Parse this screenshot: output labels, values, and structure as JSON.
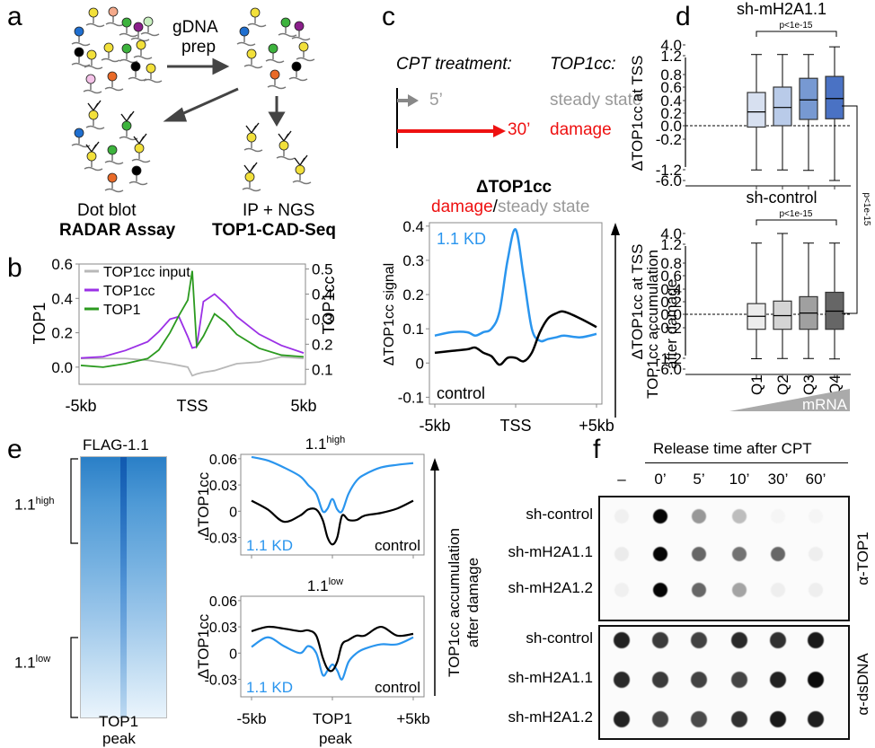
{
  "panels": {
    "a": {
      "label": "a",
      "arrow_label_line1": "gDNA",
      "arrow_label_line2": "prep",
      "left_caption_line1": "Dot blot",
      "left_caption_line2": "RADAR Assay",
      "right_caption_line1": "IP + NGS",
      "right_caption_line2": "TOP1-CAD-Seq"
    },
    "b": {
      "label": "b"
    },
    "c": {
      "label": "c",
      "cpt_treatment": "CPT treatment:",
      "top1cc_header": "TOP1cc:",
      "short_time": "5’",
      "long_time": "30’",
      "short_state": "steady state",
      "long_state": "damage",
      "title": "ΔTOP1cc",
      "subtitle_damage": "damage",
      "subtitle_sep": "/",
      "subtitle_steady": "steady state",
      "side_arrow_line1": "TOP1cc accumulation",
      "side_arrow_line2": "after damage"
    },
    "d": {
      "label": "d",
      "between_pvalue": "p<1e-15",
      "mrna_label": "mRNA"
    },
    "e": {
      "label": "e",
      "heatmap_title": "FLAG-1.1",
      "high_label_base": "1.1",
      "high_label_sup": "high",
      "low_label_base": "1.1",
      "low_label_sup": "low",
      "heatmap_xlabel_line1": "TOP1",
      "heatmap_xlabel_line2": "peak",
      "side_arrow_line1": "TOP1cc accumulation",
      "side_arrow_line2": "after damage",
      "xlabel_line2": "peak"
    },
    "f": {
      "label": "f",
      "release_header": "Release time after CPT",
      "columns": [
        "–",
        "0’",
        "5’",
        "10’",
        "30’",
        "60’"
      ],
      "rows": [
        "sh-control",
        "sh-mH2A1.1",
        "sh-mH2A1.2"
      ],
      "blot_top_label": "α-TOP1",
      "blot_bottom_label": "α-dsDNA",
      "top1_intensity": [
        [
          0.04,
          1.0,
          0.4,
          0.25,
          0.02,
          0.02
        ],
        [
          0.06,
          1.0,
          0.6,
          0.55,
          0.6,
          0.05
        ],
        [
          0.04,
          1.0,
          0.6,
          0.35,
          0.05,
          0.05
        ]
      ],
      "dsdna_intensity": [
        [
          0.88,
          0.78,
          0.75,
          0.85,
          0.82,
          0.92
        ],
        [
          0.85,
          0.78,
          0.75,
          0.74,
          0.88,
          0.97
        ],
        [
          0.88,
          0.74,
          0.72,
          0.82,
          0.92,
          0.9
        ]
      ]
    }
  },
  "chart_data": [
    {
      "id": "b",
      "type": "line",
      "title": "",
      "xlabel": "",
      "ylabel": "TOP1",
      "y2label": "TOP1cc",
      "xticks": [
        "-5kb",
        "TSS",
        "5kb"
      ],
      "xlim": [
        -5,
        5
      ],
      "ylim": [
        -0.1,
        0.6
      ],
      "yticks": [
        "0.0",
        "0.2",
        "0.4",
        "0.6"
      ],
      "y2lim": [
        0.04,
        0.52
      ],
      "y2ticks": [
        "0.1",
        "0.2",
        "0.3",
        "0.4",
        "0.5"
      ],
      "legend": "top-left",
      "x": [
        -5,
        -4,
        -3,
        -2,
        -1.5,
        -1,
        -0.6,
        -0.2,
        0,
        0.2,
        0.5,
        1,
        1.5,
        2,
        3,
        4,
        5
      ],
      "series": [
        {
          "name": "TOP1cc input",
          "color": "#b8b8b8",
          "axis": "left",
          "values": [
            0.05,
            0.05,
            0.05,
            0.04,
            0.03,
            0.02,
            0.01,
            0.0,
            -0.05,
            -0.04,
            -0.03,
            -0.02,
            0.0,
            0.02,
            0.03,
            0.06,
            0.05
          ]
        },
        {
          "name": "TOP1cc",
          "color": "#9b30e6",
          "axis": "right",
          "values": [
            0.145,
            0.15,
            0.175,
            0.21,
            0.25,
            0.3,
            0.31,
            0.23,
            0.185,
            0.19,
            0.37,
            0.4,
            0.36,
            0.31,
            0.24,
            0.195,
            0.165
          ]
        },
        {
          "name": "TOP1",
          "color": "#2b9a1f",
          "axis": "left",
          "values": [
            0.01,
            0.0,
            0.02,
            0.05,
            0.1,
            0.2,
            0.3,
            0.39,
            0.56,
            0.12,
            0.18,
            0.31,
            0.26,
            0.19,
            0.11,
            0.07,
            0.06
          ]
        }
      ]
    },
    {
      "id": "c",
      "type": "line",
      "title": "ΔTOP1cc",
      "xlabel": "",
      "ylabel": "ΔTOP1cc signal",
      "xticks": [
        "-5kb",
        "TSS",
        "+5kb"
      ],
      "xlim": [
        -5,
        5
      ],
      "ylim": [
        -0.12,
        0.41
      ],
      "yticks": [
        "-0.1",
        "0",
        "0.1",
        "0.2",
        "0.3",
        "0.4"
      ],
      "x": [
        -5,
        -4,
        -3,
        -2.5,
        -2,
        -1.5,
        -1,
        -0.5,
        0,
        0.5,
        1,
        1.5,
        2,
        2.5,
        3,
        4,
        5
      ],
      "series": [
        {
          "name": "1.1 KD",
          "color": "#2a95ee",
          "values": [
            0.08,
            0.09,
            0.09,
            0.08,
            0.09,
            0.1,
            0.15,
            0.3,
            0.39,
            0.25,
            0.1,
            0.065,
            0.07,
            0.075,
            0.08,
            0.075,
            0.085
          ]
        },
        {
          "name": "control",
          "color": "#000000",
          "values": [
            0.03,
            0.035,
            0.04,
            0.045,
            0.03,
            0.02,
            -0.005,
            0.015,
            0.015,
            0.005,
            0.03,
            0.09,
            0.13,
            0.145,
            0.15,
            0.13,
            0.105
          ]
        }
      ]
    },
    {
      "id": "d-top",
      "type": "box",
      "title": "sh-mH2A1.1",
      "ylabel": "ΔTOP1cc at TSS",
      "yticks": [
        "4.0",
        "1.2",
        "0.8",
        "0.6",
        "0.4",
        "0.2",
        "0.0",
        "-0.2",
        "-1.2",
        "-6.0"
      ],
      "categories": [
        "Q1",
        "Q2",
        "Q3",
        "Q4"
      ],
      "pvalue": "p<1e-15",
      "colors": [
        "#d7e0f0",
        "#b9cbe9",
        "#7799d2",
        "#4a72c4"
      ],
      "boxes": [
        {
          "median": 0.22,
          "q1": -0.02,
          "q3": 0.52,
          "whisker_low": -1.3,
          "whisker_high": 1.5
        },
        {
          "median": 0.29,
          "q1": 0.0,
          "q3": 0.6,
          "whisker_low": -1.3,
          "whisker_high": 1.5
        },
        {
          "median": 0.41,
          "q1": 0.1,
          "q3": 0.74,
          "whisker_low": -1.5,
          "whisker_high": 1.5
        },
        {
          "median": 0.43,
          "q1": 0.11,
          "q3": 0.77,
          "whisker_low": -6.0,
          "whisker_high": 3.5
        }
      ]
    },
    {
      "id": "d-bottom",
      "type": "box",
      "title": "sh-control",
      "ylabel": "ΔTOP1cc at TSS",
      "yticks": [
        "4.0",
        "1.2",
        "0.8",
        "0.6",
        "0.4",
        "0.2",
        "0.0",
        "-0.2",
        "-1.2",
        "-6.0"
      ],
      "categories": [
        "Q1",
        "Q2",
        "Q3",
        "Q4"
      ],
      "xlabel": "mRNA",
      "pvalue": "p<1e-15",
      "colors": [
        "#ececec",
        "#d4d4d4",
        "#a0a0a0",
        "#666666"
      ],
      "boxes": [
        {
          "median": -0.03,
          "q1": -0.25,
          "q3": 0.17,
          "whisker_low": -1.4,
          "whisker_high": 1.5
        },
        {
          "median": -0.02,
          "q1": -0.25,
          "q3": 0.21,
          "whisker_low": -1.3,
          "whisker_high": 4.0
        },
        {
          "median": 0.02,
          "q1": -0.25,
          "q3": 0.28,
          "whisker_low": -1.3,
          "whisker_high": 1.5
        },
        {
          "median": 0.05,
          "q1": -0.25,
          "q3": 0.35,
          "whisker_low": -1.5,
          "whisker_high": 1.5
        }
      ]
    },
    {
      "id": "e-high",
      "type": "line",
      "title": "1.1 high",
      "ylabel": "ΔTOP1cc",
      "xticks": [
        "-5kb",
        "TOP1",
        "+5kb"
      ],
      "xlim": [
        -5,
        5
      ],
      "ylim": [
        -0.05,
        0.065
      ],
      "yticks": [
        "-0.03",
        "0",
        "0.03",
        "0.06"
      ],
      "x": [
        -5,
        -4,
        -3,
        -2,
        -1.5,
        -1,
        -0.6,
        -0.3,
        0,
        0.3,
        0.6,
        1,
        1.5,
        2,
        3,
        4,
        5
      ],
      "series": [
        {
          "name": "1.1 KD",
          "color": "#2a95ee",
          "values": [
            0.062,
            0.058,
            0.05,
            0.04,
            0.03,
            0.02,
            0.0,
            0.003,
            0.014,
            0.002,
            0.0,
            0.02,
            0.035,
            0.042,
            0.05,
            0.053,
            0.055
          ]
        },
        {
          "name": "control",
          "color": "#000000",
          "values": [
            0.012,
            0.002,
            -0.012,
            -0.005,
            0.002,
            0.002,
            -0.01,
            -0.03,
            -0.038,
            -0.03,
            -0.005,
            -0.01,
            -0.01,
            -0.005,
            -0.002,
            0.003,
            0.012
          ]
        }
      ]
    },
    {
      "id": "e-low",
      "type": "line",
      "title": "1.1 low",
      "ylabel": "ΔTOP1cc",
      "xticks": [
        "-5kb",
        "TOP1",
        "+5kb"
      ],
      "xlim": [
        -5,
        5
      ],
      "ylim": [
        -0.05,
        0.065
      ],
      "yticks": [
        "-0.03",
        "0",
        "0.03",
        "0.06"
      ],
      "x": [
        -5,
        -4,
        -3,
        -2,
        -1.5,
        -1,
        -0.6,
        -0.3,
        0,
        0.3,
        0.6,
        1,
        1.5,
        2,
        3,
        4,
        5
      ],
      "series": [
        {
          "name": "1.1 KD",
          "color": "#2a95ee",
          "values": [
            0.007,
            0.018,
            0.008,
            0.0,
            0.008,
            0.0,
            -0.025,
            -0.02,
            -0.013,
            -0.02,
            -0.03,
            -0.01,
            0.0,
            0.005,
            0.01,
            0.01,
            0.018
          ]
        },
        {
          "name": "control",
          "color": "#000000",
          "values": [
            0.025,
            0.03,
            0.028,
            0.025,
            0.026,
            0.02,
            -0.005,
            -0.018,
            -0.02,
            -0.01,
            0.01,
            0.015,
            0.02,
            0.02,
            0.03,
            0.02,
            0.022
          ]
        }
      ]
    }
  ]
}
